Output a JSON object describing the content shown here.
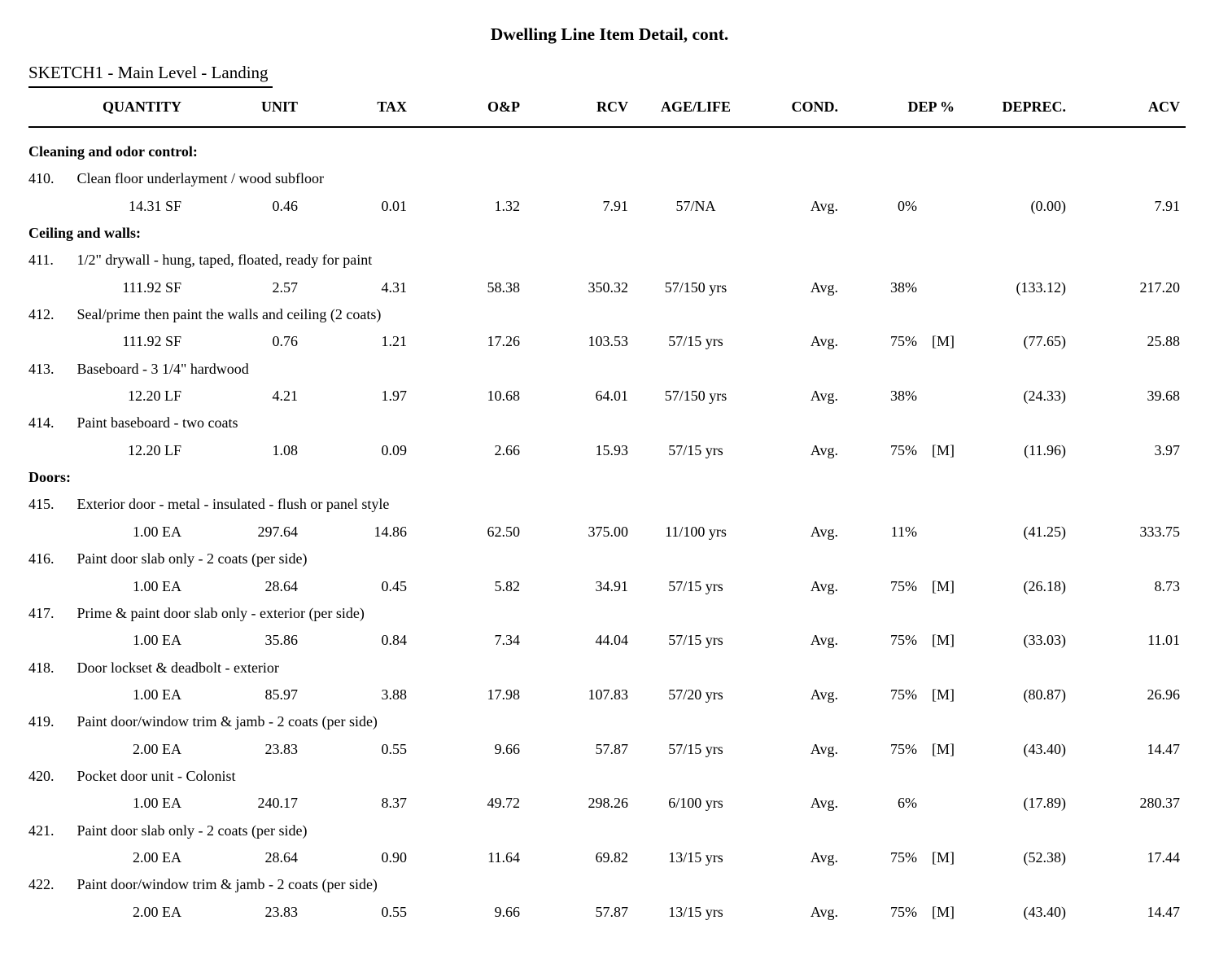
{
  "title": "Dwelling Line Item Detail, cont.",
  "sketch_heading": "SKETCH1 - Main Level - Landing",
  "columns": [
    "QUANTITY",
    "UNIT",
    "TAX",
    "O&P",
    "RCV",
    "AGE/LIFE",
    "COND.",
    "DEP %",
    "DEPREC.",
    "ACV"
  ],
  "text_color": "#000000",
  "background_color": "#ffffff",
  "groups": [
    {
      "label": "Cleaning and odor control:",
      "items": [
        {
          "num": "410.",
          "desc": "Clean floor underlayment / wood subfloor",
          "quantity": "14.31 SF",
          "unit": "0.46",
          "tax": "0.01",
          "op": "1.32",
          "rcv": "7.91",
          "age_life": "57/NA",
          "cond": "Avg.",
          "dep": "0%",
          "m": "",
          "deprec": "(0.00)",
          "acv": "7.91"
        }
      ]
    },
    {
      "label": "Ceiling and walls:",
      "items": [
        {
          "num": "411.",
          "desc": "1/2\" drywall - hung, taped, floated, ready for paint",
          "quantity": "111.92 SF",
          "unit": "2.57",
          "tax": "4.31",
          "op": "58.38",
          "rcv": "350.32",
          "age_life": "57/150 yrs",
          "cond": "Avg.",
          "dep": "38%",
          "m": "",
          "deprec": "(133.12)",
          "acv": "217.20"
        },
        {
          "num": "412.",
          "desc": "Seal/prime then paint the walls and ceiling (2 coats)",
          "quantity": "111.92 SF",
          "unit": "0.76",
          "tax": "1.21",
          "op": "17.26",
          "rcv": "103.53",
          "age_life": "57/15 yrs",
          "cond": "Avg.",
          "dep": "75%",
          "m": "[M]",
          "deprec": "(77.65)",
          "acv": "25.88"
        },
        {
          "num": "413.",
          "desc": "Baseboard - 3 1/4\" hardwood",
          "quantity": "12.20 LF",
          "unit": "4.21",
          "tax": "1.97",
          "op": "10.68",
          "rcv": "64.01",
          "age_life": "57/150 yrs",
          "cond": "Avg.",
          "dep": "38%",
          "m": "",
          "deprec": "(24.33)",
          "acv": "39.68"
        },
        {
          "num": "414.",
          "desc": "Paint baseboard - two coats",
          "quantity": "12.20 LF",
          "unit": "1.08",
          "tax": "0.09",
          "op": "2.66",
          "rcv": "15.93",
          "age_life": "57/15 yrs",
          "cond": "Avg.",
          "dep": "75%",
          "m": "[M]",
          "deprec": "(11.96)",
          "acv": "3.97"
        }
      ]
    },
    {
      "label": "Doors:",
      "items": [
        {
          "num": "415.",
          "desc": "Exterior door - metal - insulated - flush or panel style",
          "quantity": "1.00 EA",
          "unit": "297.64",
          "tax": "14.86",
          "op": "62.50",
          "rcv": "375.00",
          "age_life": "11/100 yrs",
          "cond": "Avg.",
          "dep": "11%",
          "m": "",
          "deprec": "(41.25)",
          "acv": "333.75"
        },
        {
          "num": "416.",
          "desc": "Paint door slab only - 2 coats (per side)",
          "quantity": "1.00 EA",
          "unit": "28.64",
          "tax": "0.45",
          "op": "5.82",
          "rcv": "34.91",
          "age_life": "57/15 yrs",
          "cond": "Avg.",
          "dep": "75%",
          "m": "[M]",
          "deprec": "(26.18)",
          "acv": "8.73"
        },
        {
          "num": "417.",
          "desc": "Prime & paint door slab only - exterior (per side)",
          "quantity": "1.00 EA",
          "unit": "35.86",
          "tax": "0.84",
          "op": "7.34",
          "rcv": "44.04",
          "age_life": "57/15 yrs",
          "cond": "Avg.",
          "dep": "75%",
          "m": "[M]",
          "deprec": "(33.03)",
          "acv": "11.01"
        },
        {
          "num": "418.",
          "desc": "Door lockset & deadbolt - exterior",
          "quantity": "1.00 EA",
          "unit": "85.97",
          "tax": "3.88",
          "op": "17.98",
          "rcv": "107.83",
          "age_life": "57/20 yrs",
          "cond": "Avg.",
          "dep": "75%",
          "m": "[M]",
          "deprec": "(80.87)",
          "acv": "26.96"
        },
        {
          "num": "419.",
          "desc": "Paint door/window trim & jamb - 2 coats (per side)",
          "quantity": "2.00 EA",
          "unit": "23.83",
          "tax": "0.55",
          "op": "9.66",
          "rcv": "57.87",
          "age_life": "57/15 yrs",
          "cond": "Avg.",
          "dep": "75%",
          "m": "[M]",
          "deprec": "(43.40)",
          "acv": "14.47"
        },
        {
          "num": "420.",
          "desc": "Pocket door unit - Colonist",
          "quantity": "1.00 EA",
          "unit": "240.17",
          "tax": "8.37",
          "op": "49.72",
          "rcv": "298.26",
          "age_life": "6/100 yrs",
          "cond": "Avg.",
          "dep": "6%",
          "m": "",
          "deprec": "(17.89)",
          "acv": "280.37"
        },
        {
          "num": "421.",
          "desc": "Paint door slab only - 2 coats (per side)",
          "quantity": "2.00 EA",
          "unit": "28.64",
          "tax": "0.90",
          "op": "11.64",
          "rcv": "69.82",
          "age_life": "13/15 yrs",
          "cond": "Avg.",
          "dep": "75%",
          "m": "[M]",
          "deprec": "(52.38)",
          "acv": "17.44"
        },
        {
          "num": "422.",
          "desc": "Paint door/window trim & jamb - 2 coats (per side)",
          "quantity": "2.00 EA",
          "unit": "23.83",
          "tax": "0.55",
          "op": "9.66",
          "rcv": "57.87",
          "age_life": "13/15 yrs",
          "cond": "Avg.",
          "dep": "75%",
          "m": "[M]",
          "deprec": "(43.40)",
          "acv": "14.47"
        }
      ]
    }
  ]
}
